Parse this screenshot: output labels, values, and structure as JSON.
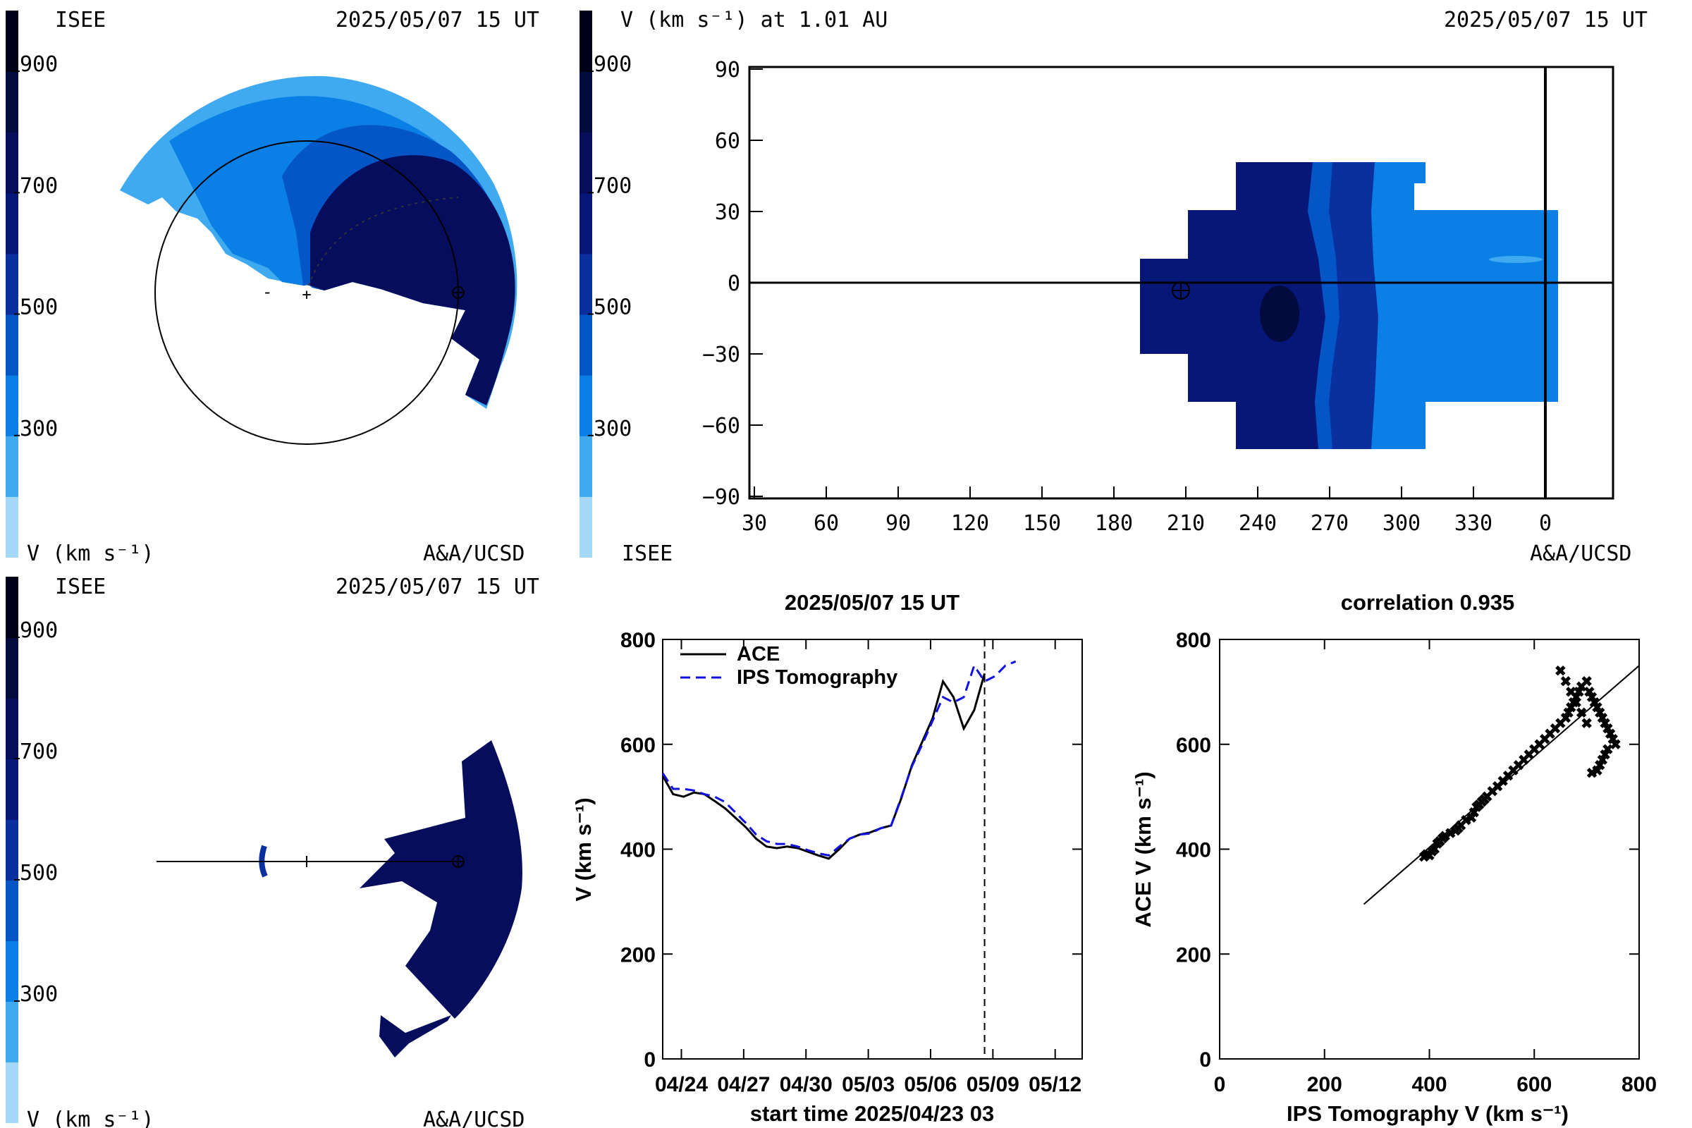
{
  "colorbar": {
    "colors": [
      "#a6d8f7",
      "#3faaf0",
      "#0a7fe6",
      "#0456c6",
      "#0a2f9e",
      "#061777",
      "#050d5c",
      "#030a3e",
      "#000019"
    ],
    "ticks": [
      "900",
      "700",
      "500",
      "300"
    ],
    "tick_values": [
      900,
      700,
      500,
      300
    ],
    "range": [
      100,
      1000
    ]
  },
  "panel1": {
    "top_left": "ISEE",
    "timestamp": "2025/05/07 15 UT",
    "unit_label": "V (km s⁻¹)",
    "credit": "A&A/UCSD"
  },
  "panel2": {
    "title": "V (km s⁻¹) at 1.01 AU",
    "timestamp": "2025/05/07 15 UT",
    "bottom_left": "ISEE",
    "credit": "A&A/UCSD",
    "x_ticks": [
      "30",
      "60",
      "90",
      "120",
      "150",
      "180",
      "210",
      "240",
      "270",
      "300",
      "330",
      "0"
    ],
    "y_ticks": [
      "90",
      "60",
      "30",
      "0",
      "−30",
      "−60",
      "−90"
    ],
    "y_tick_values": [
      90,
      60,
      30,
      0,
      -30,
      -60,
      -90
    ]
  },
  "panel3": {
    "top_left": "ISEE",
    "timestamp": "2025/05/07 15 UT",
    "unit_label": "V (km s⁻¹)",
    "credit": "A&A/UCSD"
  },
  "chart_data": [
    {
      "type": "line",
      "title": "2025/05/07 15 UT",
      "xlabel": "start time 2025/04/23 03",
      "ylabel": "V (km s⁻¹)",
      "ylim": [
        0,
        800
      ],
      "xlim": [
        0,
        20.2
      ],
      "x_ticks": [
        "04/24",
        "04/27",
        "04/30",
        "05/03",
        "05/06",
        "05/09",
        "05/12"
      ],
      "x_tick_values": [
        0.9,
        3.9,
        6.9,
        9.9,
        12.9,
        15.9,
        18.9
      ],
      "y_ticks": [
        0,
        200,
        400,
        600,
        800
      ],
      "legend_position": "top-left",
      "now_marker": 15.5,
      "series": [
        {
          "name": "ACE",
          "color": "#000000",
          "style": "solid",
          "x": [
            0,
            0.5,
            1,
            1.5,
            2,
            2.5,
            3,
            3.5,
            4,
            4.5,
            5,
            5.5,
            6,
            6.5,
            7,
            7.5,
            8,
            8.5,
            9,
            9.5,
            10,
            10.5,
            11,
            11.5,
            12,
            12.5,
            13,
            13.5,
            14,
            14.5,
            15,
            15.5
          ],
          "y": [
            540,
            505,
            500,
            508,
            505,
            492,
            478,
            460,
            442,
            420,
            405,
            402,
            405,
            402,
            395,
            388,
            382,
            400,
            420,
            428,
            432,
            440,
            445,
            498,
            560,
            605,
            650,
            720,
            690,
            630,
            665,
            735
          ]
        },
        {
          "name": "IPS Tomography",
          "color": "#1010e0",
          "style": "dashed",
          "x": [
            0,
            0.5,
            1,
            1.5,
            2,
            2.5,
            3,
            3.5,
            4,
            4.5,
            5,
            5.5,
            6,
            6.5,
            7,
            7.5,
            8,
            8.5,
            9,
            9.5,
            10,
            10.5,
            11,
            11.5,
            12,
            12.5,
            13,
            13.5,
            14,
            14.5,
            15,
            15.5,
            16,
            16.5,
            17
          ],
          "y": [
            545,
            515,
            515,
            512,
            505,
            500,
            490,
            470,
            450,
            428,
            415,
            410,
            410,
            405,
            398,
            392,
            388,
            405,
            420,
            428,
            430,
            440,
            445,
            500,
            558,
            600,
            645,
            690,
            680,
            690,
            750,
            720,
            730,
            750,
            758
          ]
        }
      ]
    },
    {
      "type": "scatter",
      "title": "correlation 0.935",
      "xlabel": "IPS Tomography V (km s⁻¹)",
      "ylabel": "ACE V (km s⁻¹)",
      "xlim": [
        0,
        800
      ],
      "ylim": [
        0,
        800
      ],
      "x_ticks": [
        0,
        200,
        400,
        600,
        800
      ],
      "y_ticks": [
        0,
        200,
        400,
        600,
        800
      ],
      "fit_line": [
        [
          275,
          295
        ],
        [
          800,
          750
        ]
      ],
      "x": [
        390,
        395,
        400,
        405,
        410,
        415,
        420,
        425,
        430,
        440,
        450,
        455,
        460,
        470,
        480,
        485,
        490,
        495,
        500,
        505,
        510,
        520,
        530,
        540,
        550,
        560,
        570,
        580,
        590,
        600,
        610,
        620,
        630,
        640,
        650,
        660,
        665,
        670,
        675,
        680,
        685,
        690,
        700,
        705,
        710,
        715,
        720,
        725,
        730,
        735,
        740,
        745,
        750,
        755,
        740,
        735,
        730,
        725,
        720,
        710,
        700,
        690,
        680,
        670,
        660,
        650
      ],
      "y": [
        385,
        390,
        388,
        395,
        400,
        410,
        415,
        420,
        425,
        430,
        435,
        440,
        445,
        455,
        460,
        470,
        480,
        485,
        490,
        495,
        500,
        510,
        520,
        530,
        540,
        550,
        560,
        570,
        580,
        590,
        600,
        610,
        620,
        630,
        640,
        650,
        660,
        670,
        680,
        690,
        700,
        710,
        720,
        700,
        690,
        680,
        670,
        660,
        650,
        640,
        630,
        620,
        610,
        600,
        590,
        580,
        570,
        560,
        550,
        545,
        640,
        660,
        680,
        700,
        720,
        740
      ]
    }
  ]
}
